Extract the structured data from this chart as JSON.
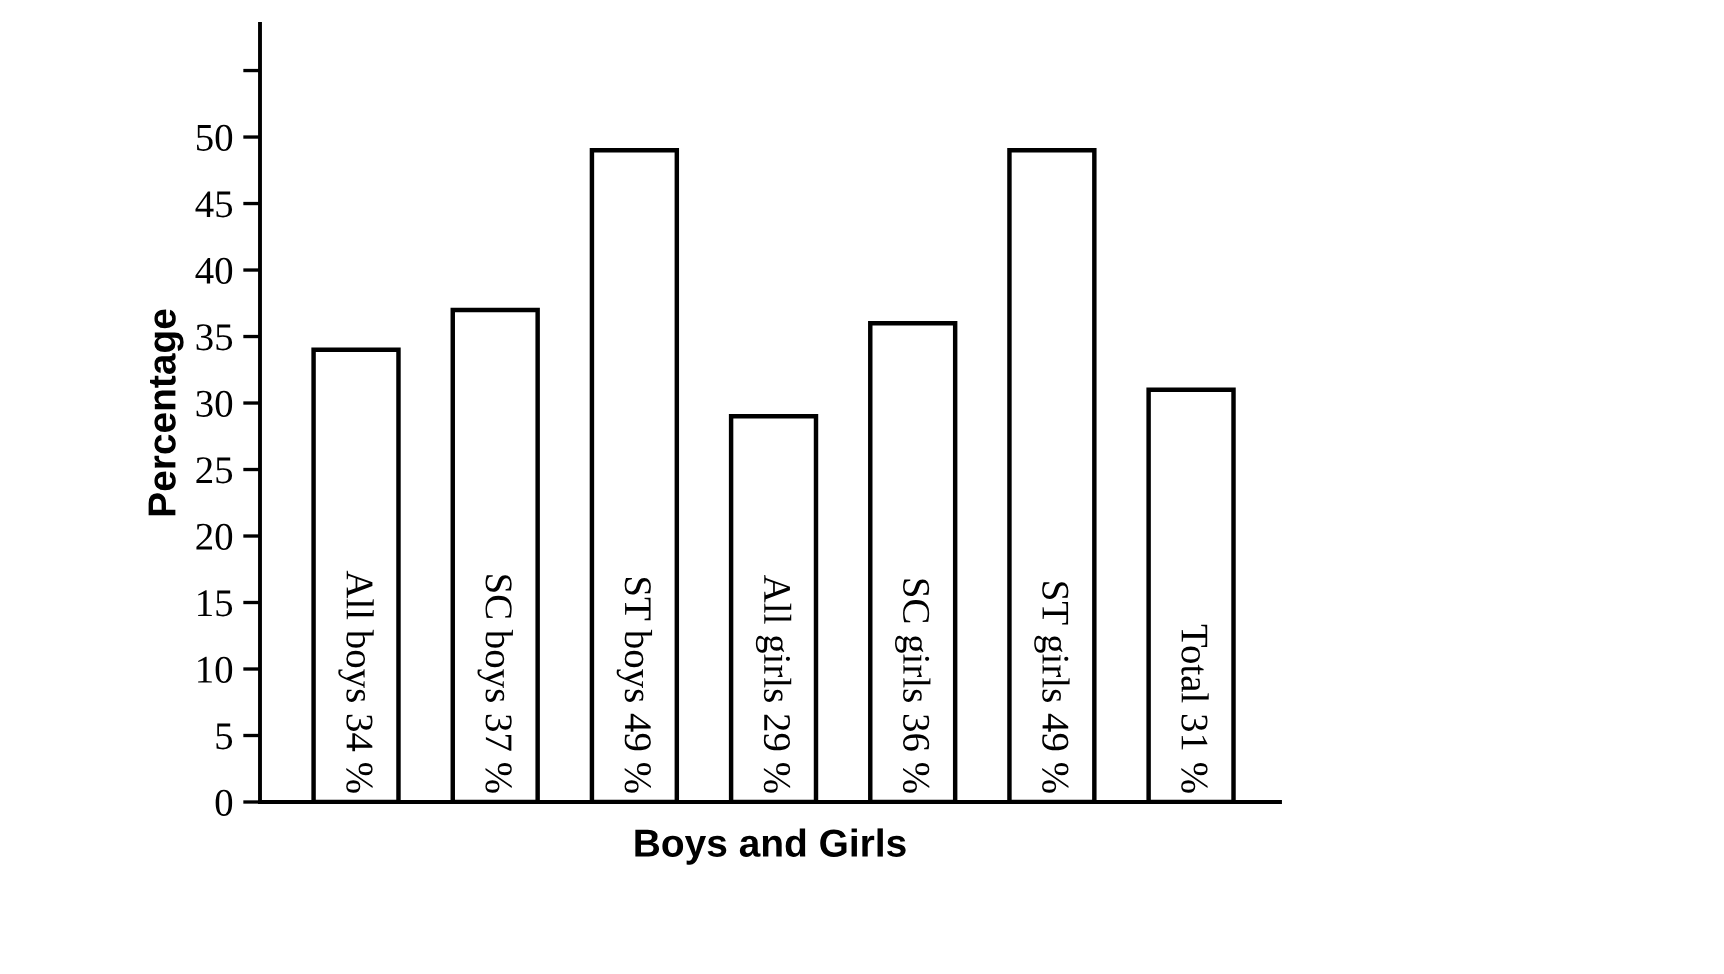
{
  "chart_data": {
    "type": "bar",
    "xlabel": "Boys and Girls",
    "ylabel": "Percentage",
    "categories": [
      null,
      null,
      null,
      null,
      null,
      null,
      null
    ],
    "values": [
      34,
      37,
      49,
      29,
      36,
      49,
      31
    ],
    "value_labels": [
      "All boys 34 %",
      "SC boys 37 %",
      "ST boys 49 %",
      "All girls 29 %",
      "SC girls 36 %",
      "ST girls 49 %",
      "Total 31 %"
    ],
    "color": "#ffffff",
    "ylim": [
      0,
      58.5
    ],
    "yticks": [
      0,
      5,
      10,
      15,
      20,
      25,
      30,
      35,
      40,
      45,
      50,
      {
        "value": 55,
        "label": null
      }
    ],
    "grid": false,
    "legend": false
  }
}
